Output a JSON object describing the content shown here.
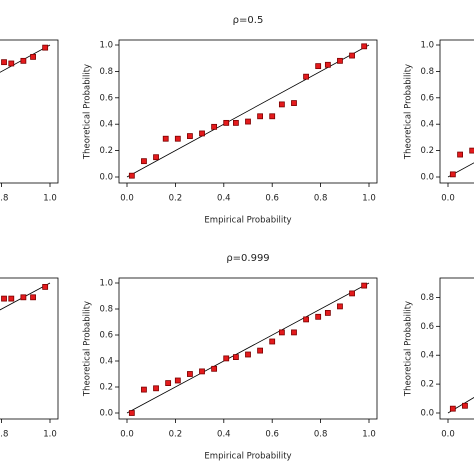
{
  "chart_data": [
    {
      "type": "scatter",
      "diagonal": true,
      "color": "#e41a1c",
      "x": [
        0.81,
        0.84,
        0.89,
        0.93,
        0.98
      ],
      "values": [
        0.87,
        0.86,
        0.88,
        0.91,
        0.98
      ],
      "xlim": [
        0,
        1
      ],
      "ylim": [
        0,
        1
      ],
      "xticks": [
        0.8,
        {
          "value": 1,
          "label": "1.0"
        }
      ],
      "yticks": []
    },
    {
      "type": "scatter",
      "diagonal": true,
      "color": "#e41a1c",
      "title": "ρ=0.5",
      "xlabel": "Empirical Probability",
      "ylabel": "Theoretical Probability",
      "x": [
        0.02,
        0.07,
        0.12,
        0.16,
        0.21,
        0.26,
        0.31,
        0.36,
        0.41,
        0.45,
        0.5,
        0.55,
        0.6,
        0.64,
        0.69,
        0.74,
        0.79,
        0.83,
        0.88,
        0.93,
        0.98
      ],
      "values": [
        0.01,
        0.12,
        0.15,
        0.29,
        0.29,
        0.31,
        0.33,
        0.38,
        0.41,
        0.41,
        0.42,
        0.46,
        0.46,
        0.55,
        0.56,
        0.76,
        0.84,
        0.85,
        0.88,
        0.92,
        0.99
      ],
      "xlim": [
        0,
        1
      ],
      "ylim": [
        0,
        1
      ],
      "xticks": [
        {
          "value": 0,
          "label": "0.0"
        },
        0.2,
        0.4,
        0.6,
        0.8,
        {
          "value": 1,
          "label": "1.0"
        }
      ],
      "yticks": [
        {
          "value": 0,
          "label": "0.0"
        },
        0.2,
        0.4,
        0.6,
        0.8,
        {
          "value": 1,
          "label": "1.0"
        }
      ]
    },
    {
      "type": "scatter",
      "diagonal": true,
      "color": "#e41a1c",
      "ylabel": "Theoretical Probability",
      "x": [
        0.02,
        0.05,
        0.1
      ],
      "values": [
        0.02,
        0.17,
        0.2
      ],
      "xlim": [
        0,
        1
      ],
      "ylim": [
        0,
        1
      ],
      "xticks": [
        {
          "value": 0,
          "label": "0.0"
        }
      ],
      "yticks": [
        {
          "value": 0,
          "label": "0.0"
        },
        0.2,
        0.4,
        0.6,
        0.8,
        {
          "value": 1,
          "label": "1.0"
        }
      ]
    },
    {
      "type": "scatter",
      "diagonal": true,
      "color": "#e41a1c",
      "x": [
        0.81,
        0.84,
        0.89,
        0.93,
        0.98
      ],
      "values": [
        0.88,
        0.88,
        0.89,
        0.89,
        0.97
      ],
      "xlim": [
        0,
        1
      ],
      "ylim": [
        0,
        1
      ],
      "xticks": [
        0.8,
        {
          "value": 1,
          "label": "1.0"
        }
      ],
      "yticks": []
    },
    {
      "type": "scatter",
      "diagonal": true,
      "color": "#e41a1c",
      "title": "ρ=0.999",
      "xlabel": "Empirical Probability",
      "ylabel": "Theoretical Probability",
      "x": [
        0.02,
        0.07,
        0.12,
        0.17,
        0.21,
        0.26,
        0.31,
        0.36,
        0.41,
        0.45,
        0.5,
        0.55,
        0.6,
        0.64,
        0.69,
        0.74,
        0.79,
        0.83,
        0.88,
        0.93,
        0.98
      ],
      "values": [
        0.0,
        0.18,
        0.19,
        0.23,
        0.25,
        0.3,
        0.32,
        0.34,
        0.42,
        0.43,
        0.45,
        0.48,
        0.55,
        0.62,
        0.62,
        0.72,
        0.74,
        0.77,
        0.82,
        0.92,
        0.98
      ],
      "xlim": [
        0,
        1
      ],
      "ylim": [
        0,
        1
      ],
      "xticks": [
        {
          "value": 0,
          "label": "0.0"
        },
        0.2,
        0.4,
        0.6,
        0.8,
        {
          "value": 1,
          "label": "1.0"
        }
      ],
      "yticks": [
        {
          "value": 0,
          "label": "0.0"
        },
        0.2,
        0.4,
        0.6,
        0.8,
        {
          "value": 1,
          "label": "1.0"
        }
      ]
    },
    {
      "type": "scatter",
      "diagonal": true,
      "color": "#e41a1c",
      "ylabel": "Theoretical Probability",
      "x": [
        0.02,
        0.07,
        0.12
      ],
      "values": [
        0.03,
        0.05,
        0.12
      ],
      "xlim": [
        0,
        1
      ],
      "ylim": [
        0,
        0.9
      ],
      "xticks": [
        {
          "value": 0,
          "label": "0.0"
        }
      ],
      "yticks": [
        {
          "value": 0,
          "label": "0.0"
        },
        0.2,
        0.4,
        0.6,
        0.8
      ]
    }
  ]
}
